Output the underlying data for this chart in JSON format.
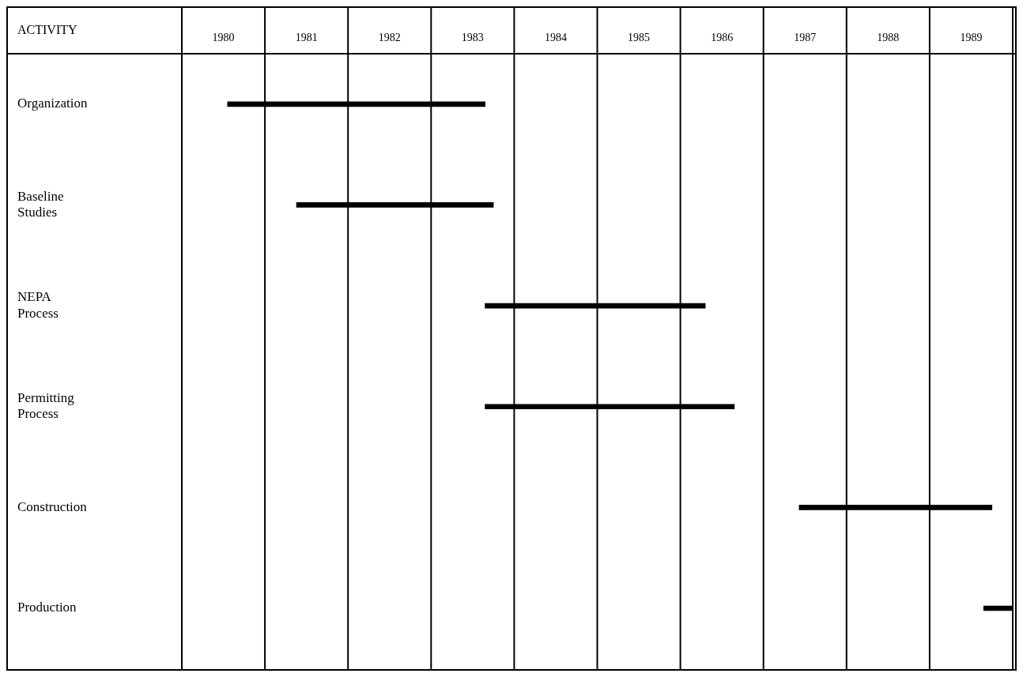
{
  "chart_data": {
    "type": "bar",
    "orientation": "horizontal",
    "ylabel": "ACTIVITY",
    "categories": [
      "Organization",
      "Baseline Studies",
      "NEPA Process",
      "Permitting Process",
      "Construction",
      "Production"
    ],
    "base": [
      1980.55,
      1981.38,
      1983.65,
      1983.65,
      1987.43,
      1989.65
    ],
    "values": [
      3.1,
      2.37,
      2.65,
      3.0,
      2.32,
      0.35
    ],
    "color": "#000000",
    "xlim": [
      1980,
      1990
    ],
    "xticks": [
      {
        "value": 1980,
        "label": null
      },
      {
        "value": 1980.5,
        "label": "1980"
      },
      {
        "value": 1981,
        "label": null
      },
      {
        "value": 1981.5,
        "label": "1981"
      },
      {
        "value": 1982,
        "label": null
      },
      {
        "value": 1982.5,
        "label": "1982"
      },
      {
        "value": 1983,
        "label": null
      },
      {
        "value": 1983.5,
        "label": "1983"
      },
      {
        "value": 1984,
        "label": null
      },
      {
        "value": 1984.5,
        "label": "1984"
      },
      {
        "value": 1985,
        "label": null
      },
      {
        "value": 1985.5,
        "label": "1985"
      },
      {
        "value": 1986,
        "label": null
      },
      {
        "value": 1986.5,
        "label": "1986"
      },
      {
        "value": 1987,
        "label": null
      },
      {
        "value": 1987.5,
        "label": "1987"
      },
      {
        "value": 1988,
        "label": null
      },
      {
        "value": 1988.5,
        "label": "1988"
      },
      {
        "value": 1989,
        "label": null
      },
      {
        "value": 1989.5,
        "label": "1989"
      },
      {
        "value": 1990,
        "label": null
      }
    ],
    "grid": "x",
    "legend": false
  }
}
